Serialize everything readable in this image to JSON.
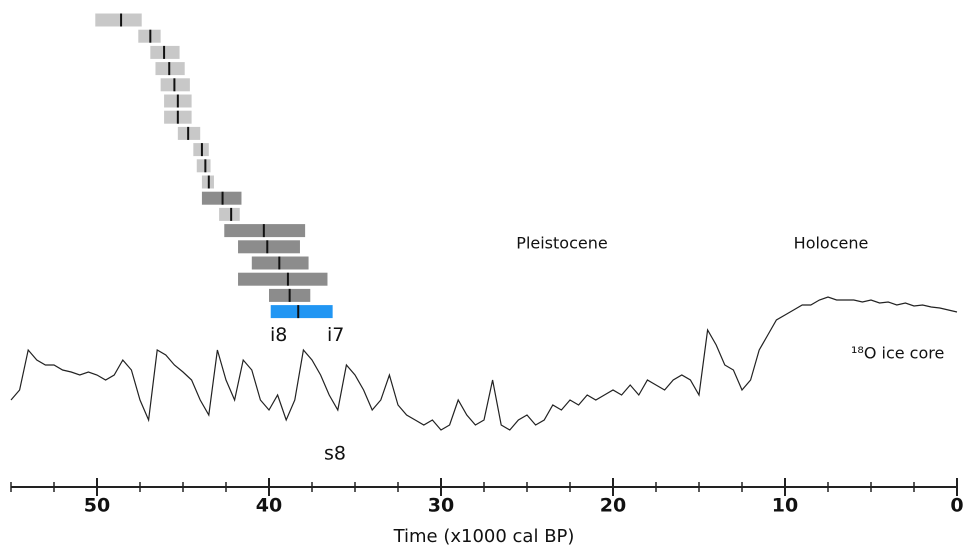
{
  "chart_data": [
    {
      "type": "range",
      "xlabel": "Time (x1000 cal BP)",
      "xlim": [
        55,
        0
      ],
      "xticks": [
        50,
        40,
        30,
        20,
        10,
        0
      ],
      "xminor_ticks": [
        55,
        52.5,
        47.5,
        45,
        42.5,
        37.5,
        35,
        32.5,
        27.5,
        25,
        22.5,
        17.5,
        15,
        12.5,
        7.5,
        5,
        2.5
      ],
      "ranges": [
        {
          "start": 50.1,
          "end": 47.4,
          "median": 48.6,
          "color": "#c8c8c8"
        },
        {
          "start": 47.6,
          "end": 46.3,
          "median": 46.9,
          "color": "#c8c8c8"
        },
        {
          "start": 46.9,
          "end": 45.2,
          "median": 46.1,
          "color": "#c8c8c8"
        },
        {
          "start": 46.6,
          "end": 44.9,
          "median": 45.8,
          "color": "#c8c8c8"
        },
        {
          "start": 46.3,
          "end": 44.6,
          "median": 45.5,
          "color": "#c8c8c8"
        },
        {
          "start": 46.1,
          "end": 44.5,
          "median": 45.3,
          "color": "#c8c8c8"
        },
        {
          "start": 46.1,
          "end": 44.5,
          "median": 45.3,
          "color": "#c8c8c8"
        },
        {
          "start": 45.3,
          "end": 44.0,
          "median": 44.7,
          "color": "#c8c8c8"
        },
        {
          "start": 44.4,
          "end": 43.5,
          "median": 43.9,
          "color": "#c8c8c8"
        },
        {
          "start": 44.2,
          "end": 43.4,
          "median": 43.7,
          "color": "#c8c8c8"
        },
        {
          "start": 43.9,
          "end": 43.2,
          "median": 43.5,
          "color": "#c8c8c8"
        },
        {
          "start": 43.9,
          "end": 41.6,
          "median": 42.7,
          "color": "#8c8c8c"
        },
        {
          "start": 42.9,
          "end": 41.7,
          "median": 42.2,
          "color": "#c8c8c8"
        },
        {
          "start": 42.6,
          "end": 37.9,
          "median": 40.3,
          "color": "#8c8c8c"
        },
        {
          "start": 41.8,
          "end": 38.2,
          "median": 40.1,
          "color": "#8c8c8c"
        },
        {
          "start": 41.0,
          "end": 37.7,
          "median": 39.4,
          "color": "#8c8c8c"
        },
        {
          "start": 41.8,
          "end": 36.6,
          "median": 38.9,
          "color": "#8c8c8c"
        },
        {
          "start": 40.0,
          "end": 37.6,
          "median": 38.8,
          "color": "#8c8c8c"
        },
        {
          "start": 39.9,
          "end": 36.3,
          "median": 38.3,
          "color": "#2196f3"
        }
      ],
      "annotations": {
        "pleistocene": "Pleistocene",
        "holocene": "Holocene",
        "i8": "i8",
        "i7": "i7",
        "s8": "s8"
      }
    },
    {
      "type": "line",
      "name": "¹⁸O ice core",
      "color": "#222222",
      "xlim": [
        55,
        0
      ],
      "ylim": [
        0,
        180
      ],
      "x": [
        55,
        54.5,
        54,
        53.5,
        53,
        52.5,
        52,
        51.5,
        51,
        50.5,
        50,
        49.5,
        49,
        48.5,
        48,
        47.5,
        47,
        46.5,
        46,
        45.5,
        45,
        44.5,
        44,
        43.5,
        43,
        42.5,
        42,
        41.5,
        41,
        40.5,
        40,
        39.5,
        39,
        38.5,
        38,
        37.5,
        37,
        36.5,
        36,
        35.5,
        35,
        34.5,
        34,
        33.5,
        33,
        32.5,
        32,
        31.5,
        31,
        30.5,
        30,
        29.5,
        29,
        28.5,
        28,
        27.5,
        27,
        26.5,
        26,
        25.5,
        25,
        24.5,
        24,
        23.5,
        23,
        22.5,
        22,
        21.5,
        21,
        20.5,
        20,
        19.5,
        19,
        18.5,
        18,
        17.5,
        17,
        16.5,
        16,
        15.5,
        15,
        14.5,
        14,
        13.5,
        13,
        12.5,
        12,
        11.5,
        11,
        10.5,
        10,
        9.5,
        9,
        8.5,
        8,
        7.5,
        7,
        6.5,
        6,
        5.5,
        5,
        4.5,
        4,
        3.5,
        3,
        2.5,
        2,
        1.5,
        1,
        0.5,
        0
      ],
      "values": [
        60,
        70,
        110,
        100,
        95,
        95,
        90,
        88,
        85,
        88,
        85,
        80,
        85,
        100,
        90,
        60,
        40,
        110,
        105,
        95,
        88,
        80,
        60,
        45,
        110,
        80,
        60,
        100,
        90,
        60,
        50,
        65,
        40,
        60,
        110,
        100,
        85,
        65,
        50,
        95,
        85,
        70,
        50,
        60,
        85,
        55,
        45,
        40,
        35,
        40,
        30,
        35,
        60,
        45,
        35,
        40,
        80,
        35,
        30,
        40,
        45,
        35,
        40,
        55,
        50,
        60,
        55,
        65,
        60,
        65,
        70,
        65,
        75,
        65,
        80,
        75,
        70,
        80,
        85,
        80,
        65,
        130,
        115,
        95,
        90,
        70,
        80,
        110,
        125,
        140,
        145,
        150,
        155,
        155,
        160,
        163,
        160,
        160,
        160,
        158,
        160,
        157,
        158,
        155,
        157,
        154,
        155,
        153,
        152,
        150,
        148
      ]
    }
  ]
}
